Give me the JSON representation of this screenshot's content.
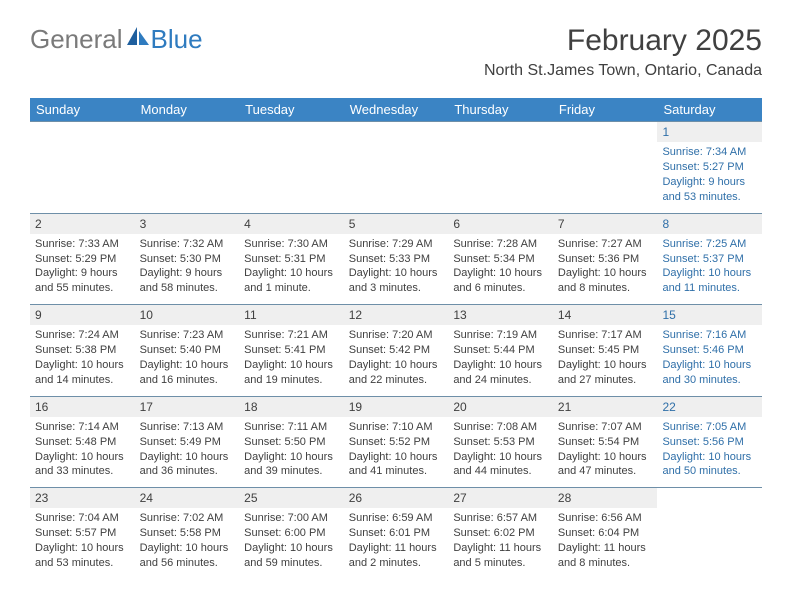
{
  "brand": {
    "part1": "General",
    "part2": "Blue"
  },
  "title": "February 2025",
  "location": "North St.James Town, Ontario, Canada",
  "colors": {
    "header_bg": "#3b84c4",
    "header_text": "#ffffff",
    "stripe_bg": "#efefef",
    "rule": "#6e8fa8",
    "text": "#404040",
    "saturday_text": "#2f6fa8",
    "logo_gray": "#7a7a7a",
    "logo_blue": "#2f7bbf"
  },
  "dow": [
    "Sunday",
    "Monday",
    "Tuesday",
    "Wednesday",
    "Thursday",
    "Friday",
    "Saturday"
  ],
  "weeks": [
    [
      null,
      null,
      null,
      null,
      null,
      null,
      {
        "n": "1",
        "sr": "Sunrise: 7:34 AM",
        "ss": "Sunset: 5:27 PM",
        "dl": "Daylight: 9 hours and 53 minutes."
      }
    ],
    [
      {
        "n": "2",
        "sr": "Sunrise: 7:33 AM",
        "ss": "Sunset: 5:29 PM",
        "dl": "Daylight: 9 hours and 55 minutes."
      },
      {
        "n": "3",
        "sr": "Sunrise: 7:32 AM",
        "ss": "Sunset: 5:30 PM",
        "dl": "Daylight: 9 hours and 58 minutes."
      },
      {
        "n": "4",
        "sr": "Sunrise: 7:30 AM",
        "ss": "Sunset: 5:31 PM",
        "dl": "Daylight: 10 hours and 1 minute."
      },
      {
        "n": "5",
        "sr": "Sunrise: 7:29 AM",
        "ss": "Sunset: 5:33 PM",
        "dl": "Daylight: 10 hours and 3 minutes."
      },
      {
        "n": "6",
        "sr": "Sunrise: 7:28 AM",
        "ss": "Sunset: 5:34 PM",
        "dl": "Daylight: 10 hours and 6 minutes."
      },
      {
        "n": "7",
        "sr": "Sunrise: 7:27 AM",
        "ss": "Sunset: 5:36 PM",
        "dl": "Daylight: 10 hours and 8 minutes."
      },
      {
        "n": "8",
        "sr": "Sunrise: 7:25 AM",
        "ss": "Sunset: 5:37 PM",
        "dl": "Daylight: 10 hours and 11 minutes."
      }
    ],
    [
      {
        "n": "9",
        "sr": "Sunrise: 7:24 AM",
        "ss": "Sunset: 5:38 PM",
        "dl": "Daylight: 10 hours and 14 minutes."
      },
      {
        "n": "10",
        "sr": "Sunrise: 7:23 AM",
        "ss": "Sunset: 5:40 PM",
        "dl": "Daylight: 10 hours and 16 minutes."
      },
      {
        "n": "11",
        "sr": "Sunrise: 7:21 AM",
        "ss": "Sunset: 5:41 PM",
        "dl": "Daylight: 10 hours and 19 minutes."
      },
      {
        "n": "12",
        "sr": "Sunrise: 7:20 AM",
        "ss": "Sunset: 5:42 PM",
        "dl": "Daylight: 10 hours and 22 minutes."
      },
      {
        "n": "13",
        "sr": "Sunrise: 7:19 AM",
        "ss": "Sunset: 5:44 PM",
        "dl": "Daylight: 10 hours and 24 minutes."
      },
      {
        "n": "14",
        "sr": "Sunrise: 7:17 AM",
        "ss": "Sunset: 5:45 PM",
        "dl": "Daylight: 10 hours and 27 minutes."
      },
      {
        "n": "15",
        "sr": "Sunrise: 7:16 AM",
        "ss": "Sunset: 5:46 PM",
        "dl": "Daylight: 10 hours and 30 minutes."
      }
    ],
    [
      {
        "n": "16",
        "sr": "Sunrise: 7:14 AM",
        "ss": "Sunset: 5:48 PM",
        "dl": "Daylight: 10 hours and 33 minutes."
      },
      {
        "n": "17",
        "sr": "Sunrise: 7:13 AM",
        "ss": "Sunset: 5:49 PM",
        "dl": "Daylight: 10 hours and 36 minutes."
      },
      {
        "n": "18",
        "sr": "Sunrise: 7:11 AM",
        "ss": "Sunset: 5:50 PM",
        "dl": "Daylight: 10 hours and 39 minutes."
      },
      {
        "n": "19",
        "sr": "Sunrise: 7:10 AM",
        "ss": "Sunset: 5:52 PM",
        "dl": "Daylight: 10 hours and 41 minutes."
      },
      {
        "n": "20",
        "sr": "Sunrise: 7:08 AM",
        "ss": "Sunset: 5:53 PM",
        "dl": "Daylight: 10 hours and 44 minutes."
      },
      {
        "n": "21",
        "sr": "Sunrise: 7:07 AM",
        "ss": "Sunset: 5:54 PM",
        "dl": "Daylight: 10 hours and 47 minutes."
      },
      {
        "n": "22",
        "sr": "Sunrise: 7:05 AM",
        "ss": "Sunset: 5:56 PM",
        "dl": "Daylight: 10 hours and 50 minutes."
      }
    ],
    [
      {
        "n": "23",
        "sr": "Sunrise: 7:04 AM",
        "ss": "Sunset: 5:57 PM",
        "dl": "Daylight: 10 hours and 53 minutes."
      },
      {
        "n": "24",
        "sr": "Sunrise: 7:02 AM",
        "ss": "Sunset: 5:58 PM",
        "dl": "Daylight: 10 hours and 56 minutes."
      },
      {
        "n": "25",
        "sr": "Sunrise: 7:00 AM",
        "ss": "Sunset: 6:00 PM",
        "dl": "Daylight: 10 hours and 59 minutes."
      },
      {
        "n": "26",
        "sr": "Sunrise: 6:59 AM",
        "ss": "Sunset: 6:01 PM",
        "dl": "Daylight: 11 hours and 2 minutes."
      },
      {
        "n": "27",
        "sr": "Sunrise: 6:57 AM",
        "ss": "Sunset: 6:02 PM",
        "dl": "Daylight: 11 hours and 5 minutes."
      },
      {
        "n": "28",
        "sr": "Sunrise: 6:56 AM",
        "ss": "Sunset: 6:04 PM",
        "dl": "Daylight: 11 hours and 8 minutes."
      },
      null
    ]
  ]
}
